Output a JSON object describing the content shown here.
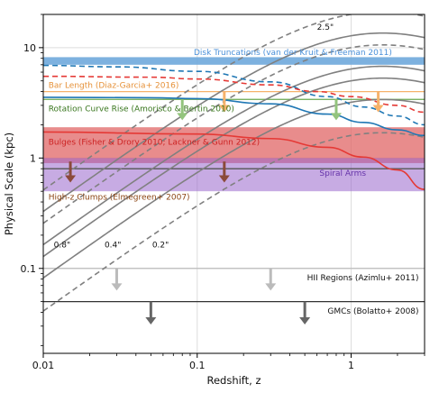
{
  "chart_data": {
    "type": "line",
    "title": "",
    "xlabel": "Redshift, z",
    "ylabel": "Physical Scale (kpc)",
    "xscale": "log",
    "yscale": "log",
    "xlim": [
      0.01,
      3.0
    ],
    "ylim": [
      0.017,
      20
    ],
    "grid": true,
    "x_ticks": [
      {
        "value": 0.01,
        "label": "0.01"
      },
      {
        "value": 0.1,
        "label": "0.1"
      },
      {
        "value": 1,
        "label": "1"
      }
    ],
    "y_ticks": [
      {
        "value": 0.1,
        "label": "0.1"
      },
      {
        "value": 1,
        "label": "1"
      },
      {
        "value": 10,
        "label": "10"
      }
    ],
    "angular_size_curves": [
      {
        "label": "2.5\"",
        "arcsec": 2.5,
        "style": "dashed",
        "color": "#808080",
        "label_at": [
          0.6,
          14.5
        ]
      },
      {
        "label": "0.8\"",
        "arcsec": 0.8,
        "style": "solid",
        "color": "#808080",
        "label_at": [
          0.0117,
          0.155
        ]
      },
      {
        "label": "0.4\"",
        "arcsec": 0.4,
        "style": "solid",
        "color": "#808080",
        "label_at": [
          0.025,
          0.155
        ]
      },
      {
        "label": "0.2\"",
        "arcsec": 0.2,
        "style": "dashed",
        "color": "#808080",
        "label_at": [
          0.051,
          0.155
        ]
      },
      {
        "label": "",
        "arcsec": 1.25,
        "style": "dashed",
        "color": "#808080"
      },
      {
        "label": "",
        "arcsec": 1.6,
        "style": "solid",
        "color": "#808080"
      },
      {
        "label": "",
        "arcsec": 0.625,
        "style": "solid",
        "color": "#808080"
      }
    ],
    "bands": [
      {
        "name": "Disk Truncations (van der Kruit & Freeman 2011)",
        "ymin": 7.0,
        "ymax": 8.2,
        "color": "#6fa8dc",
        "opacity": 0.9,
        "label_x": 0.095,
        "label_y": 8.6,
        "anchor": "start"
      },
      {
        "name": "Bulges (Fisher & Drory 2010; Lackner & Gunn 2012)",
        "ymin": 0.9,
        "ymax": 1.9,
        "color": "#e06666",
        "opacity": 0.75,
        "label_x": 0.0108,
        "label_y": 1.32,
        "anchor": "start"
      },
      {
        "name": "Spiral Arms",
        "ymin": 0.5,
        "ymax": 1.0,
        "color": "#9966cc",
        "opacity": 0.55,
        "label_x": 1.25,
        "label_y": 0.69,
        "anchor": "end"
      }
    ],
    "hlines": [
      {
        "name": "Bar Length (Diaz-Garcia+ 2016)",
        "y": 4.0,
        "color": "#f6b26b",
        "label_x": 0.0108,
        "label_y": 4.3,
        "anchor": "start"
      },
      {
        "name": "Rotation Curve Rise (Amorisco & Bertin 2010)",
        "y": 3.4,
        "color": "#6aa84f",
        "label_x": 0.0108,
        "label_y": 2.65,
        "anchor": "start"
      },
      {
        "name": "High-z Clumps (Elmegreen+ 2007)",
        "y": 0.8,
        "color": "#555555",
        "label_x": 0.0108,
        "label_y": 0.42,
        "anchor": "start"
      },
      {
        "name": "HII Regions (Azimlu+ 2011)",
        "y": 0.1,
        "color": "#bbbbbb",
        "label_x": 2.75,
        "label_y": 0.078,
        "anchor": "end"
      },
      {
        "name": "GMCs (Bolatto+ 2008)",
        "y": 0.05,
        "color": "#333333",
        "label_x": 2.75,
        "label_y": 0.039,
        "anchor": "end"
      }
    ],
    "label_colors": {
      "Disk Truncations (van der Kruit & Freeman 2011)": "#4a90d9",
      "Bar Length (Diaz-Garcia+ 2016)": "#e69138",
      "Rotation Curve Rise (Amorisco & Bertin 2010)": "#38761d",
      "Bulges (Fisher & Drory 2010; Lackner & Gunn 2012)": "#cc2222",
      "Spiral Arms": "#6633aa",
      "High-z Clumps (Elmegreen+ 2007)": "#8b4513",
      "HII Regions (Azimlu+ 2011)": "#111111",
      "GMCs (Bolatto+ 2008)": "#111111"
    },
    "resolution_curves": [
      {
        "color": "#1f77b4",
        "style": "dashed",
        "points": [
          [
            0.01,
            6.9
          ],
          [
            0.03,
            6.7
          ],
          [
            0.1,
            6.1
          ],
          [
            0.3,
            4.9
          ],
          [
            0.7,
            3.6
          ],
          [
            1.2,
            2.9
          ],
          [
            2.0,
            2.4
          ],
          [
            3.0,
            2.0
          ]
        ]
      },
      {
        "color": "#1f77b4",
        "style": "solid",
        "points": [
          [
            0.01,
            3.55
          ],
          [
            0.05,
            3.52
          ],
          [
            0.1,
            3.45
          ],
          [
            0.3,
            3.1
          ],
          [
            0.7,
            2.5
          ],
          [
            1.2,
            2.1
          ],
          [
            2.0,
            1.8
          ],
          [
            3.0,
            1.6
          ]
        ]
      },
      {
        "color": "#e53935",
        "style": "dashed",
        "points": [
          [
            0.01,
            5.5
          ],
          [
            0.05,
            5.4
          ],
          [
            0.1,
            5.2
          ],
          [
            0.3,
            4.6
          ],
          [
            0.6,
            4.0
          ],
          [
            1.0,
            3.6
          ],
          [
            2.0,
            3.0
          ],
          [
            3.0,
            2.6
          ]
        ]
      },
      {
        "color": "#e53935",
        "style": "solid",
        "points": [
          [
            0.01,
            1.72
          ],
          [
            0.1,
            1.65
          ],
          [
            0.3,
            1.5
          ],
          [
            0.7,
            1.25
          ],
          [
            1.2,
            1.02
          ],
          [
            2.0,
            0.78
          ],
          [
            3.0,
            0.52
          ]
        ]
      }
    ],
    "arrows": [
      {
        "x": 0.015,
        "y_top": 0.93,
        "y_bottom": 0.6,
        "color": "#8b4a3a"
      },
      {
        "x": 0.15,
        "y_top": 0.93,
        "y_bottom": 0.6,
        "color": "#8b4a3a"
      },
      {
        "x": 0.08,
        "y_top": 3.4,
        "y_bottom": 2.2,
        "color": "#93c47d"
      },
      {
        "x": 0.8,
        "y_top": 3.4,
        "y_bottom": 2.2,
        "color": "#93c47d"
      },
      {
        "x": 0.15,
        "y_top": 4.0,
        "y_bottom": 2.6,
        "color": "#f6b26b"
      },
      {
        "x": 1.5,
        "y_top": 4.0,
        "y_bottom": 2.6,
        "color": "#f6b26b"
      },
      {
        "x": 0.03,
        "y_top": 0.1,
        "y_bottom": 0.063,
        "color": "#bbbbbb"
      },
      {
        "x": 0.3,
        "y_top": 0.1,
        "y_bottom": 0.063,
        "color": "#bbbbbb"
      },
      {
        "x": 0.05,
        "y_top": 0.05,
        "y_bottom": 0.031,
        "color": "#666666"
      },
      {
        "x": 0.5,
        "y_top": 0.05,
        "y_bottom": 0.031,
        "color": "#666666"
      }
    ]
  }
}
